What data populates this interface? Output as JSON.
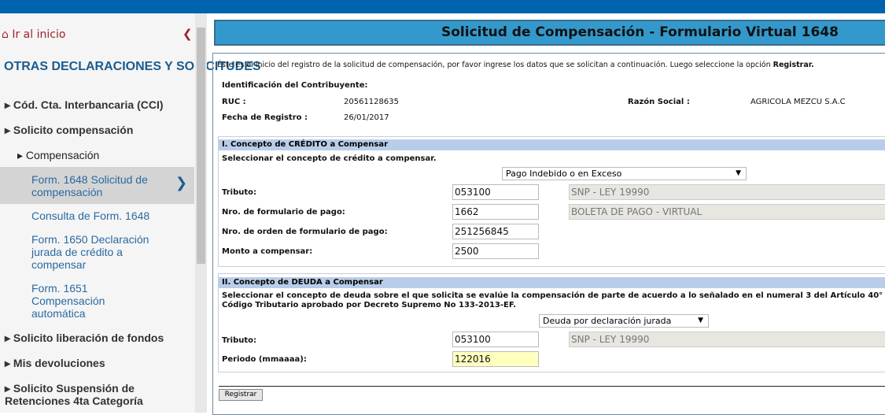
{
  "colors": {
    "topbar": "#0063ae",
    "title_bg": "#3399cc",
    "section_bg": "#b8cde9",
    "highlight": "#ffffc0"
  },
  "sidebar": {
    "home": "Ir al inicio",
    "title": "OTRAS DECLARACIONES Y SOLICITUDES",
    "items": [
      {
        "label": "Cód. Cta. Interbancaria (CCI)"
      },
      {
        "label": "Solicito compensación"
      },
      {
        "label": "Compensación"
      },
      {
        "label": "Form. 1648 Solicitud de compensación"
      },
      {
        "label": "Consulta de Form. 1648"
      },
      {
        "label": "Form. 1650 Declaración jurada de crédito a compensar"
      },
      {
        "label": "Form. 1651 Compensación automática"
      },
      {
        "label": "Solicito liberación de fondos"
      },
      {
        "label": "Mis devoluciones"
      },
      {
        "label": "Solicito Suspensión de Retenciones 4ta Categoría"
      }
    ]
  },
  "main": {
    "title": "Solicitud de Compensación - Formulario Virtual 1648",
    "intro": "Éste es el inicio del registro de la solicitud de compensación, por favor ingrese los datos que se solicitan a continuación. Luego seleccione la opción ",
    "intro_bold": "Registrar.",
    "id_heading": "Identificación del Contribuyente:",
    "ruc_label": "RUC :",
    "ruc": "20561128635",
    "razon_label": "Razón Social :",
    "razon": "AGRICOLA MEZCU S.A.C",
    "fecha_label": "Fecha de Registro :",
    "fecha": "26/01/2017",
    "credit": {
      "heading": "I. Concepto de CRÉDITO a Compensar",
      "instruction": "Seleccionar el concepto de crédito a compensar.",
      "concept": "Pago Indebido o en Exceso",
      "tributo_label": "Tributo:",
      "tributo": "053100",
      "tributo_desc": "SNP - LEY 19990",
      "nro_form_label": "Nro. de formulario de pago:",
      "nro_form": "1662",
      "nro_form_desc": "BOLETA DE PAGO - VIRTUAL",
      "nro_orden_label": "Nro. de orden de formulario de pago:",
      "nro_orden": "251256845",
      "monto_label": "Monto a compensar:",
      "monto": "2500"
    },
    "debt": {
      "heading": "II. Concepto de DEUDA a Compensar",
      "instruction1": "Seleccionar el concepto de deuda sobre el que solicita se evalúe la compensación de parte de acuerdo a lo señalado en el numeral 3 del Artículo 40° de",
      "instruction2": "Código Tributario aprobado por Decreto Supremo No 133-2013-EF.",
      "concept": "Deuda por declaración jurada",
      "tributo_label": "Tributo:",
      "tributo": "053100",
      "tributo_desc": "SNP - LEY 19990",
      "periodo_label": "Periodo (mmaaaa):",
      "periodo": "122016"
    },
    "register_button": "Registrar"
  }
}
